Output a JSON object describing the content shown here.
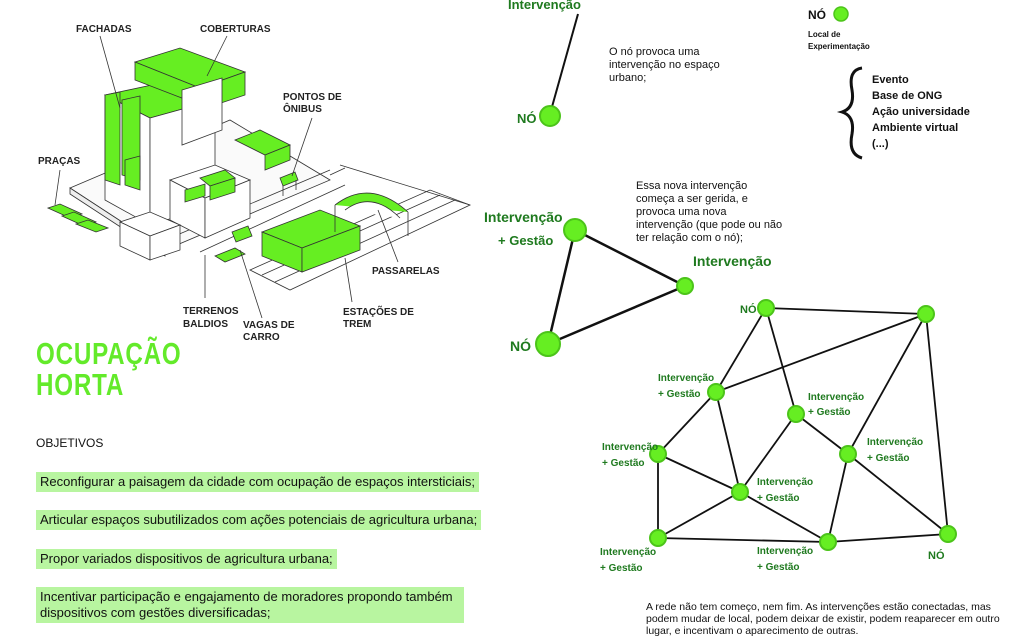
{
  "isometric": {
    "labels": {
      "fachadas": "FACHADAS",
      "coberturas": "COBERTURAS",
      "pontos1": "PONTOS DE",
      "pontos2": "ÔNIBUS",
      "pracas": "PRAÇAS",
      "terrenos1": "TERRENOS",
      "terrenos2": "BALDIOS",
      "vagas1": "VAGAS DE",
      "vagas2": "CARRO",
      "estacoes1": "ESTAÇÕES DE",
      "estacoes2": "TREM",
      "passarelas": "PASSARELAS"
    }
  },
  "title_lines": [
    "OCUPAÇÃO",
    "HORTA"
  ],
  "objectives_heading": "OBJETIVOS",
  "objectives": [
    "Reconfigurar a paisagem da cidade com ocupação de espaços intersticiais;",
    "Articular espaços subutilizados com ações potenciais de agricultura urbana;",
    "Propor variados dispositivos de agricultura urbana;",
    "Incentivar participação e engajamento de moradores propondo também dispositivos com gestões diversificadas;"
  ],
  "diagram1": {
    "top_label": "Intervenção",
    "node_label": "NÓ",
    "note": "O nó provoca uma intervenção no espaço urbano;"
  },
  "legend": {
    "node_label": "NÓ",
    "sub1": "Local de",
    "sub2": "Experimentação",
    "items": [
      "Evento",
      "Base de ONG",
      "Ação universidade",
      "Ambiente virtual",
      "(...)"
    ]
  },
  "diagram2": {
    "label_a1": "Intervenção",
    "label_a2": "+ Gestão",
    "label_b": "Intervenção",
    "node_label": "NÓ",
    "note": "Essa nova intervenção começa a ser gerida, e provoca uma nova intervenção (que pode ou não ter relação com o nó);"
  },
  "network": {
    "node_label": "NÓ",
    "int_label": "Intervenção",
    "gest_label": "+ Gestão",
    "caption": "A rede não tem começo, nem fim.  As intervenções estão conectadas, mas podem mudar de local, podem deixar de existir, podem reaparecer em outro lugar, e incentivam o aparecimento de outras."
  },
  "colors": {
    "green": "#66ee22",
    "highlight": "#b8f5a0",
    "label_green": "#1f7a1f"
  }
}
